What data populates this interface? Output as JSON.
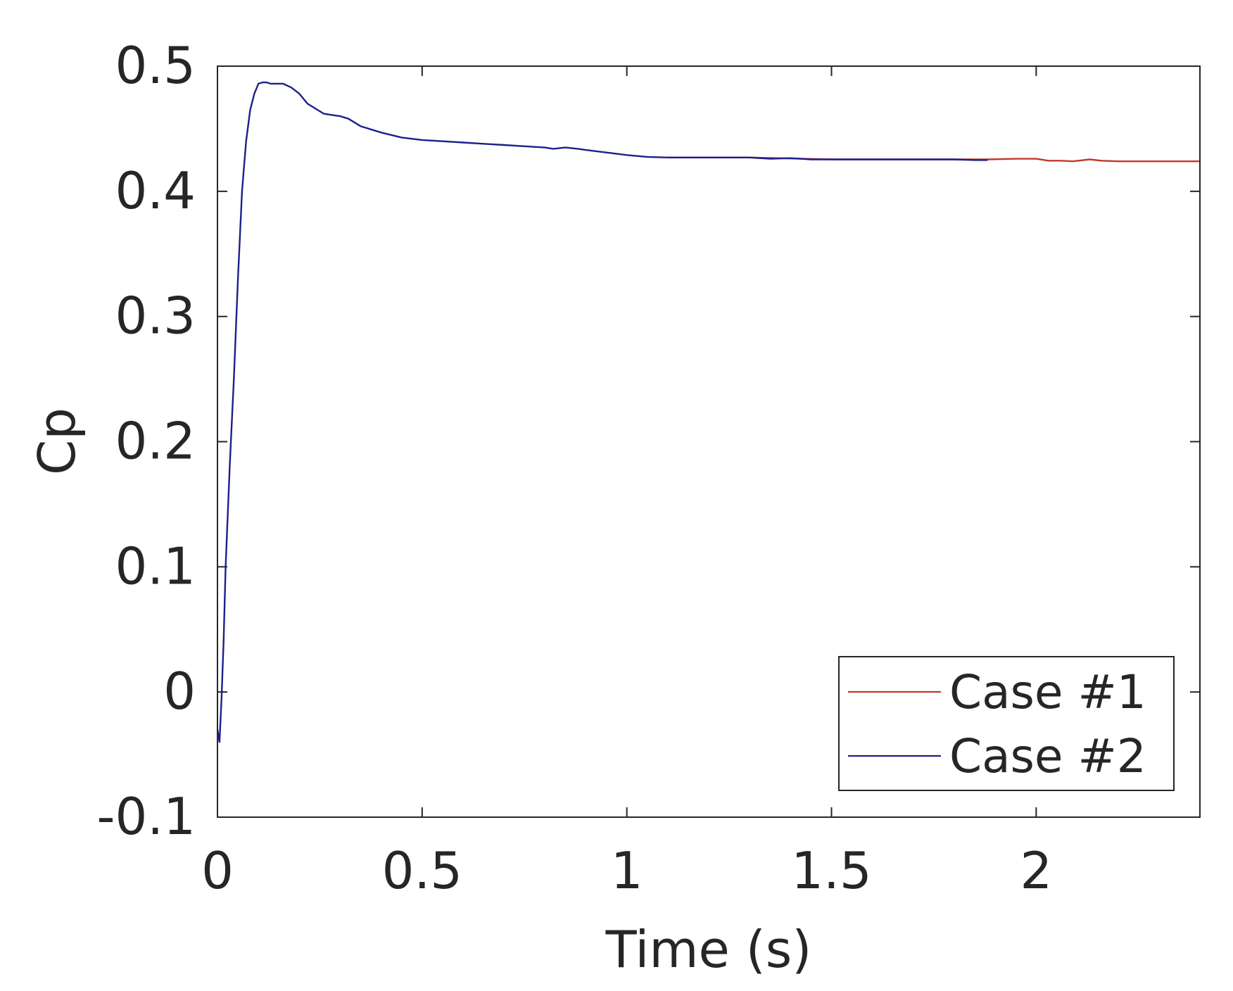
{
  "chart_data": {
    "type": "line",
    "title": "",
    "xlabel": "Time (s)",
    "ylabel": "Cp",
    "xlim": [
      0,
      2.4
    ],
    "ylim": [
      -0.1,
      0.5
    ],
    "xticks": [
      0,
      0.5,
      1,
      1.5,
      2
    ],
    "xtick_labels": [
      "0",
      "0.5",
      "1",
      "1.5",
      "2"
    ],
    "yticks": [
      -0.1,
      0,
      0.1,
      0.2,
      0.3,
      0.4,
      0.5
    ],
    "ytick_labels": [
      "-0.1",
      "0",
      "0.1",
      "0.2",
      "0.3",
      "0.4",
      "0.5"
    ],
    "grid": false,
    "legend_position": "bottom-right",
    "series": [
      {
        "name": "Case #1",
        "color": "#c0392b",
        "x": [
          1.1,
          1.3,
          1.5,
          1.7,
          1.88,
          1.95,
          2.0,
          2.03,
          2.06,
          2.09,
          2.13,
          2.16,
          2.2,
          2.3,
          2.4
        ],
        "y": [
          0.427,
          0.427,
          0.4255,
          0.4255,
          0.4255,
          0.426,
          0.426,
          0.4245,
          0.4245,
          0.424,
          0.4255,
          0.4245,
          0.424,
          0.424,
          0.424
        ]
      },
      {
        "name": "Case #2",
        "color": "#1f1f8c",
        "x": [
          0,
          0.005,
          0.01,
          0.015,
          0.02,
          0.03,
          0.04,
          0.05,
          0.06,
          0.07,
          0.08,
          0.09,
          0.1,
          0.11,
          0.12,
          0.13,
          0.14,
          0.15,
          0.16,
          0.18,
          0.2,
          0.22,
          0.24,
          0.26,
          0.28,
          0.3,
          0.32,
          0.35,
          0.4,
          0.45,
          0.5,
          0.55,
          0.6,
          0.65,
          0.7,
          0.75,
          0.8,
          0.82,
          0.85,
          0.88,
          0.9,
          0.95,
          1.0,
          1.05,
          1.1,
          1.2,
          1.3,
          1.35,
          1.4,
          1.45,
          1.5,
          1.6,
          1.7,
          1.8,
          1.85,
          1.88
        ],
        "y": [
          -0.03,
          -0.04,
          -0.005,
          0.04,
          0.1,
          0.18,
          0.25,
          0.33,
          0.4,
          0.44,
          0.465,
          0.478,
          0.486,
          0.487,
          0.487,
          0.486,
          0.486,
          0.486,
          0.486,
          0.483,
          0.478,
          0.47,
          0.466,
          0.462,
          0.461,
          0.46,
          0.458,
          0.452,
          0.447,
          0.443,
          0.441,
          0.44,
          0.439,
          0.438,
          0.437,
          0.436,
          0.435,
          0.434,
          0.435,
          0.434,
          0.433,
          0.431,
          0.429,
          0.4275,
          0.427,
          0.427,
          0.427,
          0.426,
          0.4265,
          0.4255,
          0.4255,
          0.4255,
          0.4255,
          0.4255,
          0.425,
          0.425
        ]
      }
    ]
  }
}
